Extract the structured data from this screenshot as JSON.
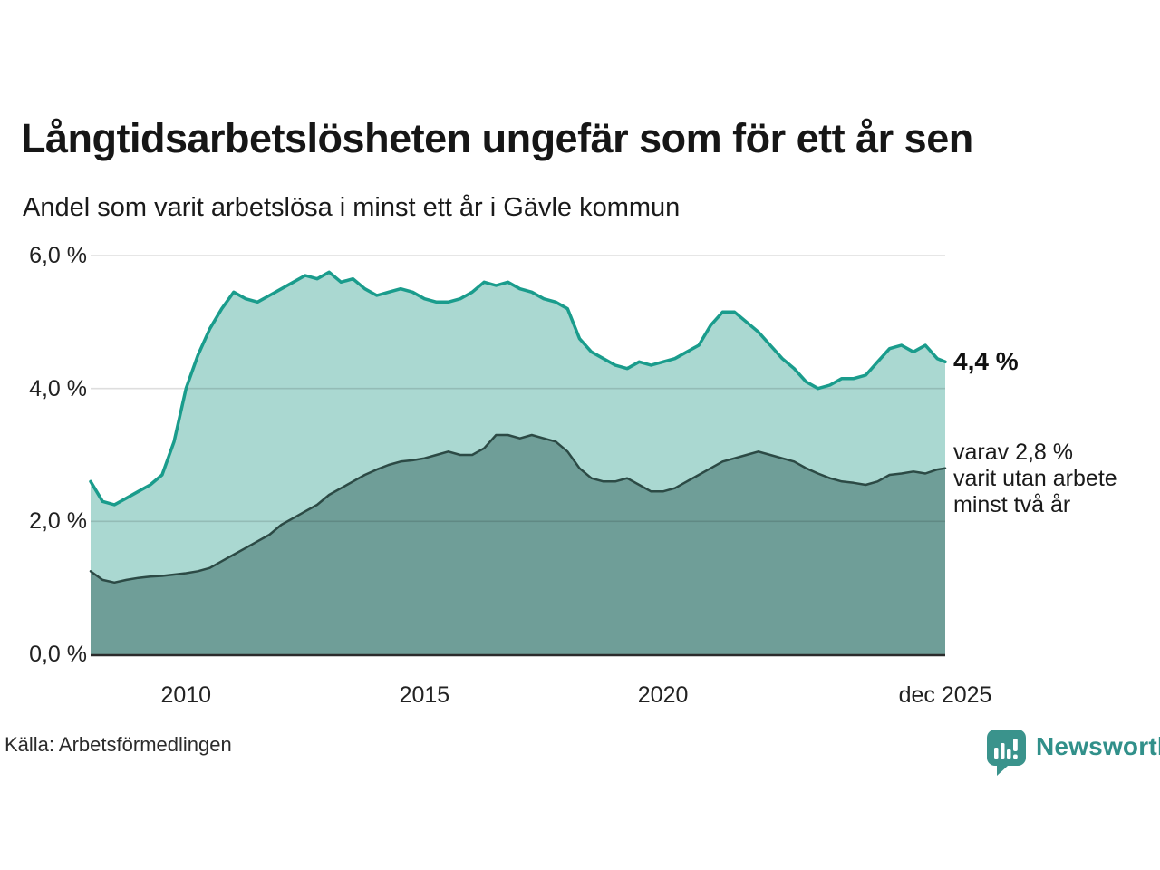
{
  "title": "Långtidsarbetslösheten ungefär som för ett år sen",
  "subtitle": "Andel som varit arbetslösa i minst ett år i Gävle kommun",
  "source": "Källa: Arbetsförmedlingen",
  "logo": {
    "text": "Newsworthy",
    "icon": "newsworthy-barchart-bubble-icon"
  },
  "annotations": {
    "latest": "4,4 %",
    "secondary": "varav 2,8 %\nvarit utan arbete\nminst två år"
  },
  "colors": {
    "accent_teal_line": "#1a9c8c",
    "fill_light_teal": "#aad8d1",
    "fill_dark_teal": "#6f9e98",
    "dark_line": "#2c4a45",
    "gridline": "rgba(0,0,0,0.13)",
    "baseline": "#2b2b2b",
    "logo_teal": "#3a938c",
    "text": "#1a1a1a"
  },
  "chart_data": {
    "type": "area",
    "title": "Långtidsarbetslösheten ungefär som för ett år sen",
    "subtitle": "Andel som varit arbetslösa i minst ett år i Gävle kommun",
    "unit": "%",
    "ylim": [
      0,
      6
    ],
    "grid": true,
    "latest_value_pct": 4.4,
    "latest_secondary_value_pct": 2.8,
    "x_ticks": [
      {
        "v": 2010,
        "label": "2010"
      },
      {
        "v": 2015,
        "label": "2015"
      },
      {
        "v": 2020,
        "label": "2020"
      },
      {
        "v": 2025.917,
        "label": "dec 2025"
      }
    ],
    "y_ticks": [
      {
        "v": 0,
        "label": "0,0 %"
      },
      {
        "v": 2,
        "label": "2,0 %"
      },
      {
        "v": 4,
        "label": "4,0 %"
      },
      {
        "v": 6,
        "label": "6,0 %"
      }
    ],
    "x": [
      2008.0,
      2008.25,
      2008.5,
      2008.75,
      2009.0,
      2009.25,
      2009.5,
      2009.75,
      2010.0,
      2010.25,
      2010.5,
      2010.75,
      2011.0,
      2011.25,
      2011.5,
      2011.75,
      2012.0,
      2012.25,
      2012.5,
      2012.75,
      2013.0,
      2013.25,
      2013.5,
      2013.75,
      2014.0,
      2014.25,
      2014.5,
      2014.75,
      2015.0,
      2015.25,
      2015.5,
      2015.75,
      2016.0,
      2016.25,
      2016.5,
      2016.75,
      2017.0,
      2017.25,
      2017.5,
      2017.75,
      2018.0,
      2018.25,
      2018.5,
      2018.75,
      2019.0,
      2019.25,
      2019.5,
      2019.75,
      2020.0,
      2020.25,
      2020.5,
      2020.75,
      2021.0,
      2021.25,
      2021.5,
      2021.75,
      2022.0,
      2022.25,
      2022.5,
      2022.75,
      2023.0,
      2023.25,
      2023.5,
      2023.75,
      2024.0,
      2024.25,
      2024.5,
      2024.75,
      2025.0,
      2025.25,
      2025.5,
      2025.75,
      2025.917
    ],
    "series": [
      {
        "id": "arbetslosa-minst-ett-ar",
        "name": "Andel som varit arbetslösa i minst ett år",
        "line_color": "#1a9c8c",
        "fill_color": "#aad8d1",
        "line_width": 3.5,
        "values": [
          2.6,
          2.3,
          2.25,
          2.35,
          2.45,
          2.55,
          2.7,
          3.2,
          4.0,
          4.5,
          4.9,
          5.2,
          5.45,
          5.35,
          5.3,
          5.4,
          5.5,
          5.6,
          5.7,
          5.65,
          5.75,
          5.6,
          5.65,
          5.5,
          5.4,
          5.45,
          5.5,
          5.45,
          5.35,
          5.3,
          5.3,
          5.35,
          5.45,
          5.6,
          5.55,
          5.6,
          5.5,
          5.45,
          5.35,
          5.3,
          5.2,
          4.75,
          4.55,
          4.45,
          4.35,
          4.3,
          4.4,
          4.35,
          4.4,
          4.45,
          4.55,
          4.65,
          4.95,
          5.15,
          5.15,
          5.0,
          4.85,
          4.65,
          4.45,
          4.3,
          4.1,
          4.0,
          4.05,
          4.15,
          4.15,
          4.2,
          4.4,
          4.6,
          4.65,
          4.55,
          4.65,
          4.45,
          4.4
        ]
      },
      {
        "id": "varav-minst-tva-ar",
        "name": "varav utan arbete minst två år",
        "line_color": "#2c4a45",
        "fill_color": "#6f9e98",
        "line_width": 2.5,
        "values": [
          1.25,
          1.12,
          1.08,
          1.12,
          1.15,
          1.17,
          1.18,
          1.2,
          1.22,
          1.25,
          1.3,
          1.4,
          1.5,
          1.6,
          1.7,
          1.8,
          1.95,
          2.05,
          2.15,
          2.25,
          2.4,
          2.5,
          2.6,
          2.7,
          2.78,
          2.85,
          2.9,
          2.92,
          2.95,
          3.0,
          3.05,
          3.0,
          3.0,
          3.1,
          3.3,
          3.3,
          3.25,
          3.3,
          3.25,
          3.2,
          3.05,
          2.8,
          2.65,
          2.6,
          2.6,
          2.65,
          2.55,
          2.45,
          2.45,
          2.5,
          2.6,
          2.7,
          2.8,
          2.9,
          2.95,
          3.0,
          3.05,
          3.0,
          2.95,
          2.9,
          2.8,
          2.72,
          2.65,
          2.6,
          2.58,
          2.55,
          2.6,
          2.7,
          2.72,
          2.75,
          2.72,
          2.78,
          2.8
        ]
      }
    ]
  }
}
